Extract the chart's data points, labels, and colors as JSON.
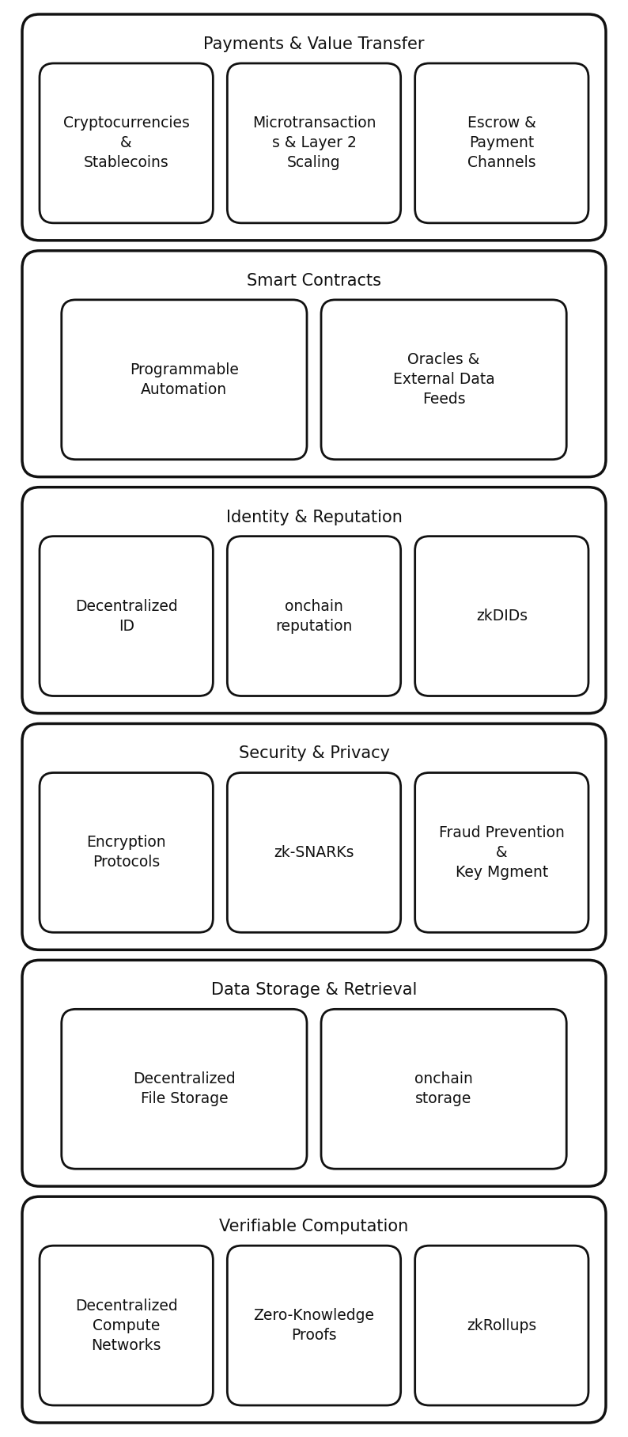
{
  "layers": [
    {
      "title": "Payments & Value Transfer",
      "items": [
        "Cryptocurrencies\n&\nStablecoins",
        "Microtransaction\ns & Layer 2\nScaling",
        "Escrow &\nPayment\nChannels"
      ],
      "n_items": 3
    },
    {
      "title": "Smart Contracts",
      "items": [
        "Programmable\nAutomation",
        "Oracles &\nExternal Data\nFeeds"
      ],
      "n_items": 2
    },
    {
      "title": "Identity & Reputation",
      "items": [
        "Decentralized\nID",
        "onchain\nreputation",
        "zkDIDs"
      ],
      "n_items": 3
    },
    {
      "title": "Security & Privacy",
      "items": [
        "Encryption\nProtocols",
        "zk-SNARKs",
        "Fraud Prevention\n&\nKey Mgment"
      ],
      "n_items": 3
    },
    {
      "title": "Data Storage & Retrieval",
      "items": [
        "Decentralized\nFile Storage",
        "onchain\nstorage"
      ],
      "n_items": 2
    },
    {
      "title": "Verifiable Computation",
      "items": [
        "Decentralized\nCompute\nNetworks",
        "Zero-Knowledge\nProofs",
        "zkRollups"
      ],
      "n_items": 3
    }
  ],
  "bg_color": "#ffffff",
  "border_color": "#111111",
  "text_color": "#111111",
  "title_fontsize": 15,
  "item_fontsize": 13.5
}
